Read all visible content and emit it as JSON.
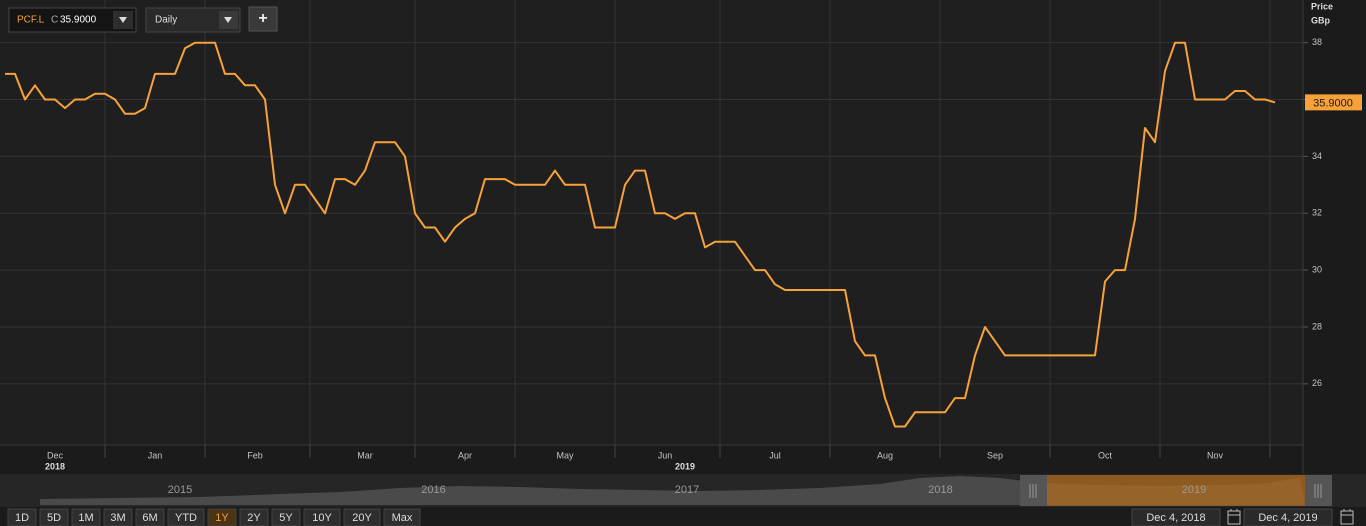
{
  "toolbar": {
    "price_prefix": "C",
    "interval": "Daily",
    "add_button": "+"
  },
  "chart_data": {
    "type": "line",
    "series": [
      {
        "name": "PCF.L",
        "color": "#f7a13a",
        "values": [
          36.9,
          36.9,
          36.0,
          36.5,
          36.0,
          36.0,
          35.7,
          36.0,
          36.0,
          36.2,
          36.2,
          36.0,
          35.5,
          35.5,
          35.7,
          36.9,
          36.9,
          36.9,
          37.8,
          38.0,
          38.0,
          38.0,
          36.9,
          36.9,
          36.5,
          36.5,
          36.0,
          33.0,
          32.0,
          33.0,
          33.0,
          32.5,
          32.0,
          33.2,
          33.2,
          33.0,
          33.5,
          34.5,
          34.5,
          34.5,
          34.0,
          32.0,
          31.5,
          31.5,
          31.0,
          31.5,
          31.8,
          32.0,
          33.2,
          33.2,
          33.2,
          33.0,
          33.0,
          33.0,
          33.0,
          33.5,
          33.0,
          33.0,
          33.0,
          31.5,
          31.5,
          31.5,
          33.0,
          33.5,
          33.5,
          32.0,
          32.0,
          31.8,
          32.0,
          32.0,
          30.8,
          31.0,
          31.0,
          31.0,
          30.5,
          30.0,
          30.0,
          29.5,
          29.3,
          29.3,
          29.3,
          29.3,
          29.3,
          29.3,
          29.3,
          27.5,
          27.0,
          27.0,
          25.5,
          24.5,
          24.5,
          25.0,
          25.0,
          25.0,
          25.0,
          25.5,
          25.5,
          27.0,
          28.0,
          27.5,
          27.0,
          27.0,
          27.0,
          27.0,
          27.0,
          27.0,
          27.0,
          27.0,
          27.0,
          27.0,
          29.6,
          30.0,
          30.0,
          31.8,
          35.0,
          34.5,
          37.0,
          38.0,
          38.0,
          36.0,
          36.0,
          36.0,
          36.0,
          36.3,
          36.3,
          36.0,
          36.0,
          35.9
        ]
      }
    ],
    "categories": [
      null,
      null,
      null,
      null,
      null,
      "Dec",
      null,
      null,
      null,
      null,
      null,
      null,
      null,
      null,
      null,
      "Jan",
      null,
      null,
      null,
      null,
      null,
      null,
      null,
      null,
      null,
      "Feb",
      null,
      null,
      null,
      null,
      null,
      null,
      null,
      null,
      null,
      null,
      "Mar",
      null,
      null,
      null,
      null,
      null,
      null,
      null,
      null,
      null,
      "Apr",
      null,
      null,
      null,
      null,
      null,
      null,
      null,
      null,
      null,
      "May",
      null,
      null,
      null,
      null,
      null,
      null,
      null,
      null,
      null,
      "Jun",
      null,
      null,
      null,
      null,
      null,
      null,
      null,
      null,
      null,
      null,
      "Jul",
      null,
      null,
      null,
      null,
      null,
      null,
      null,
      null,
      null,
      null,
      "Aug",
      null,
      null,
      null,
      null,
      null,
      null,
      null,
      null,
      null,
      null,
      "Sep",
      null,
      null,
      null,
      null,
      null,
      null,
      null,
      null,
      null,
      null,
      "Oct",
      null,
      null,
      null,
      null,
      null,
      null,
      null,
      null,
      null,
      null,
      "Nov",
      null,
      null,
      null,
      null,
      null,
      null
    ],
    "x_years": [
      null,
      null,
      null,
      null,
      null,
      "2018",
      null,
      null,
      null,
      null,
      null,
      null,
      null,
      null,
      null,
      null,
      null,
      null,
      null,
      null,
      null,
      null,
      null,
      null,
      null,
      null,
      null,
      null,
      null,
      null,
      null,
      null,
      null,
      null,
      null,
      null,
      null,
      null,
      null,
      null,
      null,
      null,
      null,
      null,
      null,
      null,
      null,
      null,
      null,
      null,
      null,
      null,
      null,
      null,
      null,
      null,
      null,
      null,
      null,
      null,
      null,
      null,
      null,
      null,
      null,
      null,
      null,
      null,
      "2019",
      null,
      null,
      null,
      null,
      null,
      null,
      null,
      null,
      null,
      null,
      null,
      null,
      null,
      null,
      null,
      null,
      null,
      null,
      null,
      null,
      null,
      null,
      null,
      null,
      null,
      null,
      null,
      null,
      null,
      null,
      null,
      null,
      null,
      null,
      null,
      null,
      null,
      null,
      null,
      null,
      null,
      null,
      null,
      null,
      null,
      null,
      null,
      null,
      null,
      null,
      null,
      null,
      null,
      null,
      null,
      null,
      null,
      null,
      null
    ],
    "y_label": "Price",
    "y_unit": "GBp",
    "ylim": [
      23.85,
      39.5
    ],
    "yticks": [
      26,
      28,
      30,
      32,
      34,
      36,
      38
    ],
    "last_value_label": "35.9000",
    "grid": true
  },
  "navigator": {
    "years": [
      "2015",
      "2016",
      "2017",
      "2018",
      "2019"
    ]
  },
  "ranges": {
    "buttons": [
      "1D",
      "5D",
      "1M",
      "3M",
      "6M",
      "YTD",
      "1Y",
      "2Y",
      "5Y",
      "10Y",
      "20Y",
      "Max"
    ],
    "active": "1Y"
  },
  "dates": {
    "from": "Dec 4, 2018",
    "to": "Dec 4, 2019"
  }
}
